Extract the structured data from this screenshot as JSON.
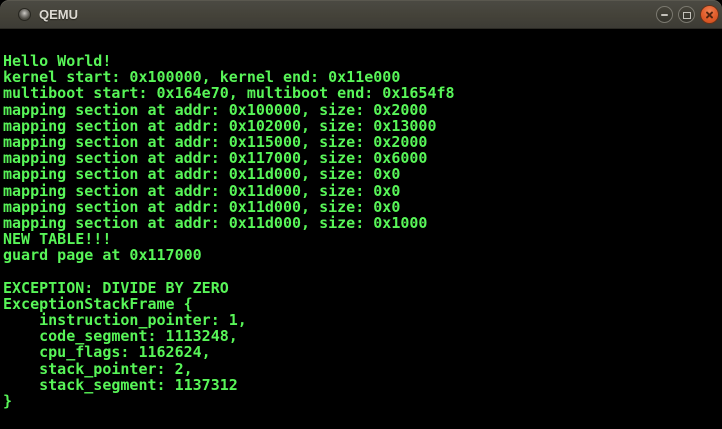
{
  "window": {
    "title": "QEMU"
  },
  "icons": {
    "app_icon": "window-badge-circle",
    "minimize": "minus",
    "maximize": "square-outline",
    "close": "cross"
  },
  "colors": {
    "titlebar_top": "#4b4a43",
    "titlebar_bottom": "#3c3b35",
    "title_text": "#dcd9d2",
    "button_ring": "#7a786f",
    "close_button": "#e2602f",
    "close_cross": "#54250f",
    "terminal_background": "#000000",
    "terminal_text": "#58f558"
  },
  "terminal": {
    "lines": [
      "Hello World!",
      "kernel start: 0x100000, kernel end: 0x11e000",
      "multiboot start: 0x164e70, multiboot end: 0x1654f8",
      "mapping section at addr: 0x100000, size: 0x2000",
      "mapping section at addr: 0x102000, size: 0x13000",
      "mapping section at addr: 0x115000, size: 0x2000",
      "mapping section at addr: 0x117000, size: 0x6000",
      "mapping section at addr: 0x11d000, size: 0x0",
      "mapping section at addr: 0x11d000, size: 0x0",
      "mapping section at addr: 0x11d000, size: 0x0",
      "mapping section at addr: 0x11d000, size: 0x1000",
      "NEW TABLE!!!",
      "guard page at 0x117000",
      "",
      "EXCEPTION: DIVIDE BY ZERO",
      "ExceptionStackFrame {",
      "    instruction_pointer: 1,",
      "    code_segment: 1113248,",
      "    cpu_flags: 1162624,",
      "    stack_pointer: 2,",
      "    stack_segment: 1137312",
      "}"
    ]
  }
}
